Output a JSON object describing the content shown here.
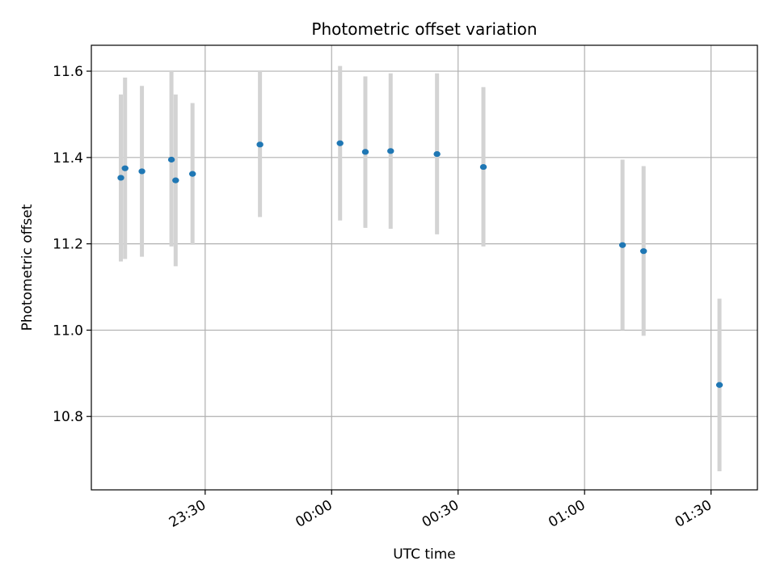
{
  "chart_data": {
    "type": "scatter",
    "title": "Photometric offset variation",
    "xlabel": "UTC time",
    "ylabel": "Photometric offset",
    "x_ticks": [
      "23:30",
      "00:00",
      "00:30",
      "01:00",
      "01:30"
    ],
    "y_ticks": [
      "10.8",
      "11.0",
      "11.2",
      "11.4",
      "11.6"
    ],
    "xlim": [
      "23:03",
      "01:41"
    ],
    "ylim": [
      10.63,
      11.66
    ],
    "grid": true,
    "marker_color": "#1f77b4",
    "errorbar_color": "#d3d3d3",
    "points": [
      {
        "x": "23:10",
        "y": 11.353,
        "lo": 11.159,
        "hi": 11.546
      },
      {
        "x": "23:11",
        "y": 11.375,
        "lo": 11.165,
        "hi": 11.585
      },
      {
        "x": "23:15",
        "y": 11.368,
        "lo": 11.17,
        "hi": 11.566
      },
      {
        "x": "23:22",
        "y": 11.395,
        "lo": 11.194,
        "hi": 11.6
      },
      {
        "x": "23:23",
        "y": 11.347,
        "lo": 11.148,
        "hi": 11.546
      },
      {
        "x": "23:27",
        "y": 11.362,
        "lo": 11.198,
        "hi": 11.526
      },
      {
        "x": "23:43",
        "y": 11.43,
        "lo": 11.262,
        "hi": 11.6
      },
      {
        "x": "00:02",
        "y": 11.433,
        "lo": 11.254,
        "hi": 11.612
      },
      {
        "x": "00:08",
        "y": 11.413,
        "lo": 11.237,
        "hi": 11.588
      },
      {
        "x": "00:14",
        "y": 11.415,
        "lo": 11.235,
        "hi": 11.595
      },
      {
        "x": "00:25",
        "y": 11.408,
        "lo": 11.222,
        "hi": 11.595
      },
      {
        "x": "00:36",
        "y": 11.378,
        "lo": 11.194,
        "hi": 11.563
      },
      {
        "x": "01:09",
        "y": 11.197,
        "lo": 11.0,
        "hi": 11.395
      },
      {
        "x": "01:14",
        "y": 11.183,
        "lo": 10.987,
        "hi": 11.38
      },
      {
        "x": "01:32",
        "y": 10.873,
        "lo": 10.673,
        "hi": 11.073
      }
    ]
  }
}
